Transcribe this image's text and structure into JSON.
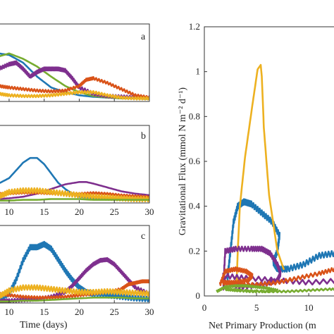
{
  "chart_data": [
    {
      "type": "line",
      "panel_letter": "a",
      "xlim": [
        8.5,
        30
      ],
      "x_ticks": [
        10,
        15,
        20,
        25,
        30
      ],
      "ylim": [
        0,
        1
      ],
      "series": [
        {
          "color": "#1f77b4",
          "x": [
            8.5,
            10,
            12,
            14,
            16,
            18,
            20,
            22,
            24,
            26,
            28,
            30
          ],
          "y": [
            0.62,
            0.6,
            0.5,
            0.32,
            0.18,
            0.12,
            0.08,
            0.06,
            0.05,
            0.04,
            0.04,
            0.04
          ],
          "wiggle": 0
        },
        {
          "color": "#77ac30",
          "x": [
            8.5,
            10,
            12,
            14,
            16,
            18,
            20,
            22,
            24,
            26,
            28,
            30
          ],
          "y": [
            0.58,
            0.62,
            0.55,
            0.45,
            0.32,
            0.2,
            0.12,
            0.07,
            0.05,
            0.04,
            0.04,
            0.03
          ],
          "wiggle": 0
        },
        {
          "color": "#7e2f8e",
          "x": [
            8.5,
            10,
            11,
            12,
            13,
            14,
            15,
            16,
            17,
            18,
            19,
            20,
            22,
            24,
            26,
            28,
            30
          ],
          "y": [
            0.42,
            0.48,
            0.5,
            0.42,
            0.32,
            0.38,
            0.42,
            0.42,
            0.42,
            0.4,
            0.3,
            0.18,
            0.1,
            0.07,
            0.06,
            0.05,
            0.05
          ],
          "wiggle": 0.02
        },
        {
          "color": "#d95319",
          "x": [
            8.5,
            10,
            12,
            14,
            16,
            18,
            20,
            21,
            22,
            24,
            26,
            28,
            30
          ],
          "y": [
            0.2,
            0.18,
            0.16,
            0.14,
            0.13,
            0.14,
            0.2,
            0.28,
            0.3,
            0.24,
            0.16,
            0.08,
            0.05
          ],
          "wiggle": 0.015
        },
        {
          "color": "#edb120",
          "x": [
            8.5,
            10,
            12,
            14,
            16,
            18,
            20,
            22,
            24,
            26,
            28,
            30
          ],
          "y": [
            0.1,
            0.08,
            0.07,
            0.07,
            0.08,
            0.1,
            0.12,
            0.12,
            0.08,
            0.05,
            0.04,
            0.04
          ],
          "wiggle": 0.015
        }
      ]
    },
    {
      "type": "line",
      "panel_letter": "b",
      "xlim": [
        8.5,
        30
      ],
      "x_ticks": [
        10,
        15,
        20,
        25,
        30
      ],
      "ylim": [
        0,
        1
      ],
      "series": [
        {
          "color": "#1f77b4",
          "x": [
            8.5,
            10,
            11,
            12,
            13,
            14,
            15,
            16,
            17,
            18,
            19,
            20,
            22,
            24,
            26,
            28,
            30
          ],
          "y": [
            0.25,
            0.32,
            0.42,
            0.52,
            0.58,
            0.58,
            0.5,
            0.38,
            0.26,
            0.18,
            0.12,
            0.08,
            0.06,
            0.05,
            0.05,
            0.04,
            0.04
          ],
          "wiggle": 0
        },
        {
          "color": "#7e2f8e",
          "x": [
            8.5,
            10,
            12,
            14,
            16,
            18,
            20,
            21,
            22,
            24,
            26,
            28,
            30
          ],
          "y": [
            0.05,
            0.06,
            0.08,
            0.12,
            0.18,
            0.24,
            0.27,
            0.27,
            0.25,
            0.2,
            0.15,
            0.12,
            0.1
          ],
          "wiggle": 0
        },
        {
          "color": "#d95319",
          "x": [
            8.5,
            10,
            12,
            14,
            16,
            18,
            20,
            22,
            24,
            26,
            28,
            30
          ],
          "y": [
            0.12,
            0.12,
            0.13,
            0.13,
            0.12,
            0.12,
            0.12,
            0.13,
            0.12,
            0.1,
            0.09,
            0.08
          ],
          "wiggle": 0.01
        },
        {
          "color": "#edb120",
          "x": [
            8.5,
            10,
            12,
            14,
            16,
            18,
            20,
            22,
            24,
            26,
            28,
            30
          ],
          "y": [
            0.08,
            0.14,
            0.16,
            0.16,
            0.14,
            0.12,
            0.1,
            0.08,
            0.07,
            0.06,
            0.05,
            0.05
          ],
          "wiggle": 0.03
        },
        {
          "color": "#77ac30",
          "x": [
            8.5,
            10,
            12,
            14,
            16,
            18,
            20,
            22,
            24,
            26,
            28,
            30
          ],
          "y": [
            0.03,
            0.03,
            0.04,
            0.04,
            0.05,
            0.05,
            0.05,
            0.04,
            0.04,
            0.04,
            0.04,
            0.04
          ],
          "wiggle": 0
        }
      ]
    },
    {
      "type": "line",
      "panel_letter": "c",
      "xlim": [
        8.5,
        30
      ],
      "x_ticks": [
        10,
        15,
        20,
        25,
        30
      ],
      "ylim": [
        0,
        1
      ],
      "series": [
        {
          "color": "#1f77b4",
          "x": [
            8.5,
            10,
            11,
            12,
            13,
            14,
            15,
            16,
            17,
            18,
            19,
            20,
            21,
            22,
            24,
            26,
            28,
            30
          ],
          "y": [
            0.05,
            0.12,
            0.3,
            0.55,
            0.72,
            0.72,
            0.76,
            0.7,
            0.56,
            0.42,
            0.3,
            0.2,
            0.14,
            0.12,
            0.1,
            0.08,
            0.06,
            0.05
          ],
          "wiggle": 0.03
        },
        {
          "color": "#7e2f8e",
          "x": [
            8.5,
            10,
            12,
            14,
            16,
            18,
            19,
            20,
            21,
            22,
            23,
            24,
            25,
            26,
            27,
            28,
            30
          ],
          "y": [
            0.02,
            0.03,
            0.04,
            0.05,
            0.08,
            0.14,
            0.22,
            0.32,
            0.42,
            0.5,
            0.55,
            0.56,
            0.5,
            0.4,
            0.3,
            0.2,
            0.12
          ],
          "wiggle": 0.02
        },
        {
          "color": "#d95319",
          "x": [
            8.5,
            10,
            12,
            14,
            16,
            18,
            20,
            22,
            24,
            26,
            27,
            28,
            29,
            30
          ],
          "y": [
            0.12,
            0.1,
            0.08,
            0.07,
            0.07,
            0.08,
            0.1,
            0.12,
            0.14,
            0.18,
            0.24,
            0.26,
            0.28,
            0.28
          ],
          "wiggle": 0.015
        },
        {
          "color": "#edb120",
          "x": [
            8.5,
            10,
            12,
            14,
            16,
            18,
            20,
            22,
            24,
            26,
            28,
            30
          ],
          "y": [
            0.08,
            0.16,
            0.2,
            0.2,
            0.18,
            0.16,
            0.14,
            0.14,
            0.15,
            0.14,
            0.13,
            0.12
          ],
          "wiggle": 0.03
        },
        {
          "color": "#77ac30",
          "x": [
            8.5,
            10,
            12,
            14,
            16,
            18,
            20,
            22,
            24,
            26,
            28,
            30
          ],
          "y": [
            0.02,
            0.02,
            0.03,
            0.03,
            0.04,
            0.05,
            0.06,
            0.07,
            0.07,
            0.07,
            0.06,
            0.06
          ],
          "wiggle": 0
        }
      ],
      "xlabel": "Time (days)"
    },
    {
      "type": "line",
      "xlabel": "Net Primary Production (m",
      "ylabel": "Gravitational Flux (mmol N m⁻² d⁻¹)",
      "xlim": [
        0,
        13.5
      ],
      "x_ticks": [
        0,
        5,
        10
      ],
      "ylim": [
        0,
        1.2
      ],
      "y_ticks": [
        0,
        0.2,
        0.4,
        0.6,
        0.8,
        1,
        1.2
      ],
      "y_tick_labels": [
        "0",
        "0.2",
        "0.4",
        "0.6",
        "0.8",
        "1",
        "1.2"
      ],
      "series": [
        {
          "color": "#1f77b4",
          "x": [
            2.2,
            2.5,
            2.8,
            3.2,
            3.8,
            4.5,
            5.5,
            6.5,
            7.2,
            7.0,
            6.6,
            7.0,
            8.0,
            9.5,
            11.0,
            12.5,
            13.5
          ],
          "y": [
            0.07,
            0.2,
            0.33,
            0.4,
            0.42,
            0.41,
            0.37,
            0.33,
            0.27,
            0.2,
            0.15,
            0.12,
            0.12,
            0.14,
            0.18,
            0.19,
            0.19
          ],
          "wiggle": 0.012
        },
        {
          "color": "#edb120",
          "x": [
            3.1,
            3.2,
            3.4,
            3.9,
            4.6,
            5.1,
            5.4,
            5.5,
            5.7,
            6.2,
            7.0,
            7.6
          ],
          "y": [
            0.07,
            0.2,
            0.4,
            0.62,
            0.85,
            1.01,
            1.03,
            0.98,
            0.75,
            0.45,
            0.2,
            0.12
          ],
          "wiggle": 0
        },
        {
          "color": "#7e2f8e",
          "x": [
            1.8,
            2.0,
            3.0,
            4.5,
            5.5,
            6.3,
            7.0,
            7.3,
            7.0,
            5.5,
            3.5,
            2.0,
            1.8,
            4.0,
            7.0,
            10.0,
            13.5
          ],
          "y": [
            0.02,
            0.2,
            0.21,
            0.21,
            0.21,
            0.19,
            0.14,
            0.1,
            0.07,
            0.05,
            0.04,
            0.06,
            0.09,
            0.08,
            0.07,
            0.06,
            0.07
          ],
          "wiggle": 0.01
        },
        {
          "color": "#d95319",
          "x": [
            1.5,
            2.0,
            3.0,
            4.0,
            4.6,
            4.2,
            3.0,
            2.0,
            1.8,
            3.0,
            5.0,
            7.0,
            9.0,
            11.0,
            12.5,
            13.5
          ],
          "y": [
            0.05,
            0.11,
            0.12,
            0.11,
            0.09,
            0.07,
            0.06,
            0.06,
            0.06,
            0.05,
            0.05,
            0.06,
            0.08,
            0.1,
            0.12,
            0.13
          ],
          "wiggle": 0.008
        },
        {
          "color": "#77ac30",
          "x": [
            1.2,
            2.0,
            3.0,
            4.0,
            5.0,
            6.0,
            7.0,
            6.0,
            4.5,
            3.0,
            2.0,
            3.5,
            6.0,
            8.0,
            10.0,
            12.0,
            13.5
          ],
          "y": [
            0.02,
            0.04,
            0.045,
            0.045,
            0.04,
            0.035,
            0.025,
            0.02,
            0.02,
            0.025,
            0.03,
            0.025,
            0.02,
            0.02,
            0.025,
            0.03,
            0.03
          ],
          "wiggle": 0.004
        }
      ]
    }
  ]
}
